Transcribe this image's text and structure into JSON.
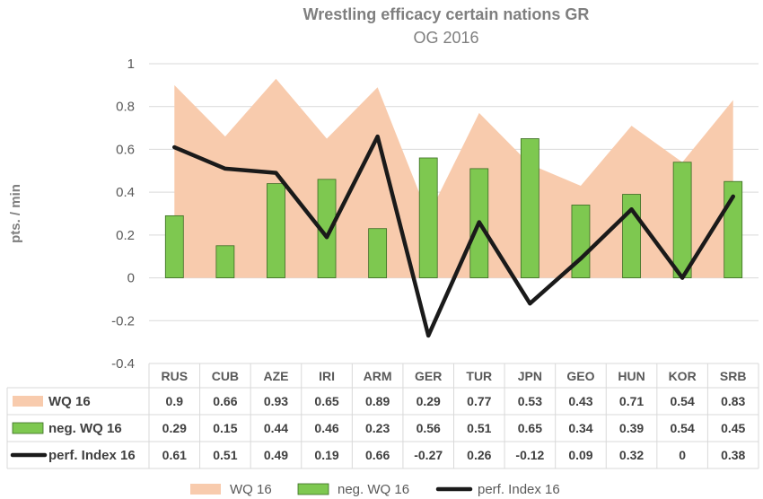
{
  "chart_data": {
    "type": "bar",
    "title": "Wrestling efficacy certain nations  GR",
    "subtitle": "OG 2016",
    "ylabel": "pts. / min",
    "xlabel": "",
    "ylim": [
      -0.4,
      1
    ],
    "yticks": [
      "1",
      "0.8",
      "0.6",
      "0.4",
      "0.2",
      "0",
      "-0.2",
      "-0.4"
    ],
    "yticks_values": [
      1,
      0.8,
      0.6,
      0.4,
      0.2,
      0,
      -0.2,
      -0.4
    ],
    "grid": true,
    "legend_position": "bottom",
    "categories": [
      "RUS",
      "CUB",
      "AZE",
      "IRI",
      "ARM",
      "GER",
      "TUR",
      "JPN",
      "GEO",
      "HUN",
      "KOR",
      "SRB"
    ],
    "series": [
      {
        "name": "WQ 16",
        "type": "area",
        "color": "#f8cbad",
        "values": [
          0.9,
          0.66,
          0.93,
          0.65,
          0.89,
          0.29,
          0.77,
          0.53,
          0.43,
          0.71,
          0.54,
          0.83
        ],
        "labels": [
          "0.9",
          "0.66",
          "0.93",
          "0.65",
          "0.89",
          "0.29",
          "0.77",
          "0.53",
          "0.43",
          "0.71",
          "0.54",
          "0.83"
        ]
      },
      {
        "name": "neg. WQ 16",
        "type": "bar",
        "color": "#7ec850",
        "edge_color": "#3a6b22",
        "values": [
          0.29,
          0.15,
          0.44,
          0.46,
          0.23,
          0.56,
          0.51,
          0.65,
          0.34,
          0.39,
          0.54,
          0.45
        ],
        "labels": [
          "0.29",
          "0.15",
          "0.44",
          "0.46",
          "0.23",
          "0.56",
          "0.51",
          "0.65",
          "0.34",
          "0.39",
          "0.54",
          "0.45"
        ]
      },
      {
        "name": "perf. Index 16",
        "type": "line",
        "color": "#1a1a1a",
        "values": [
          0.61,
          0.51,
          0.49,
          0.19,
          0.66,
          -0.27,
          0.26,
          -0.12,
          0.09,
          0.32,
          0,
          0.38
        ],
        "labels": [
          "0.61",
          "0.51",
          "0.49",
          "0.19",
          "0.66",
          "-0.27",
          "0.26",
          "-0.12",
          "0.09",
          "0.32",
          "0",
          "0.38"
        ]
      }
    ]
  }
}
